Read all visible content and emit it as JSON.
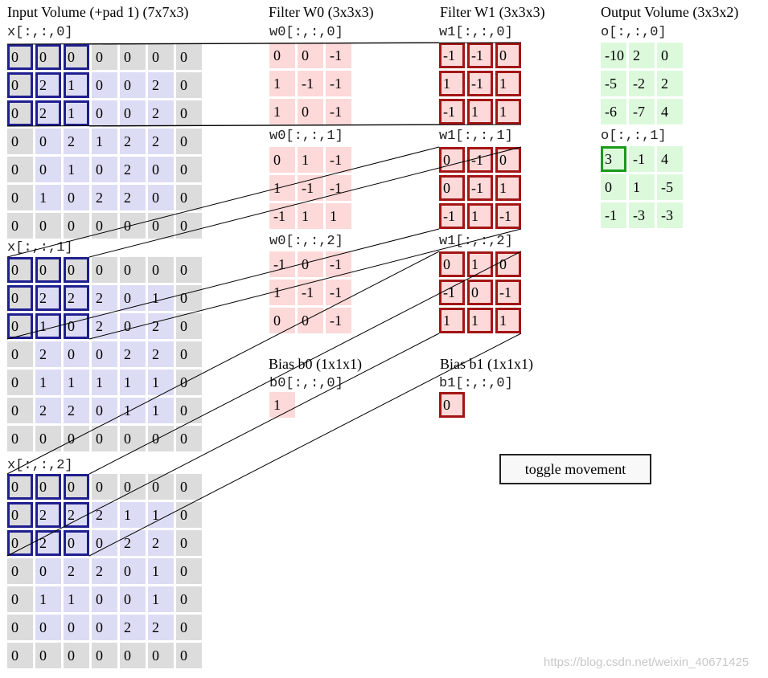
{
  "headers": {
    "input": "Input Volume (+pad 1) (7x7x3)",
    "filter_w0": "Filter W0 (3x3x3)",
    "filter_w1": "Filter W1 (3x3x3)",
    "output": "Output Volume (3x3x2)",
    "bias_b0": "Bias b0 (1x1x1)",
    "bias_b1": "Bias b1 (1x1x1)"
  },
  "input": {
    "slices": [
      {
        "label": "x[:,:,0]",
        "grid": [
          [
            0,
            0,
            0,
            0,
            0,
            0,
            0
          ],
          [
            0,
            2,
            1,
            0,
            0,
            2,
            0
          ],
          [
            0,
            2,
            1,
            0,
            0,
            2,
            0
          ],
          [
            0,
            0,
            2,
            1,
            2,
            2,
            0
          ],
          [
            0,
            0,
            1,
            0,
            2,
            0,
            0
          ],
          [
            0,
            1,
            0,
            2,
            2,
            0,
            0
          ],
          [
            0,
            0,
            0,
            0,
            0,
            0,
            0
          ]
        ]
      },
      {
        "label": "x[:,:,1]",
        "grid": [
          [
            0,
            0,
            0,
            0,
            0,
            0,
            0
          ],
          [
            0,
            2,
            2,
            2,
            0,
            1,
            0
          ],
          [
            0,
            1,
            0,
            2,
            0,
            2,
            0
          ],
          [
            0,
            2,
            0,
            0,
            2,
            2,
            0
          ],
          [
            0,
            1,
            1,
            1,
            1,
            1,
            0
          ],
          [
            0,
            2,
            2,
            0,
            1,
            1,
            0
          ],
          [
            0,
            0,
            0,
            0,
            0,
            0,
            0
          ]
        ]
      },
      {
        "label": "x[:,:,2]",
        "grid": [
          [
            0,
            0,
            0,
            0,
            0,
            0,
            0
          ],
          [
            0,
            2,
            2,
            2,
            1,
            1,
            0
          ],
          [
            0,
            2,
            0,
            0,
            2,
            2,
            0
          ],
          [
            0,
            0,
            2,
            2,
            0,
            1,
            0
          ],
          [
            0,
            1,
            1,
            0,
            0,
            1,
            0
          ],
          [
            0,
            0,
            0,
            0,
            2,
            2,
            0
          ],
          [
            0,
            0,
            0,
            0,
            0,
            0,
            0
          ]
        ]
      }
    ]
  },
  "w0": {
    "slices": [
      {
        "label": "w0[:,:,0]",
        "grid": [
          [
            0,
            0,
            -1
          ],
          [
            1,
            -1,
            -1
          ],
          [
            1,
            0,
            -1
          ]
        ]
      },
      {
        "label": "w0[:,:,1]",
        "grid": [
          [
            0,
            1,
            -1
          ],
          [
            1,
            -1,
            -1
          ],
          [
            -1,
            1,
            1
          ]
        ]
      },
      {
        "label": "w0[:,:,2]",
        "grid": [
          [
            -1,
            0,
            -1
          ],
          [
            1,
            -1,
            -1
          ],
          [
            0,
            0,
            -1
          ]
        ]
      }
    ]
  },
  "w1": {
    "slices": [
      {
        "label": "w1[:,:,0]",
        "grid": [
          [
            -1,
            -1,
            0
          ],
          [
            1,
            -1,
            1
          ],
          [
            -1,
            1,
            1
          ]
        ]
      },
      {
        "label": "w1[:,:,1]",
        "grid": [
          [
            0,
            -1,
            0
          ],
          [
            0,
            -1,
            1
          ],
          [
            -1,
            1,
            -1
          ]
        ]
      },
      {
        "label": "w1[:,:,2]",
        "grid": [
          [
            0,
            1,
            0
          ],
          [
            -1,
            0,
            -1
          ],
          [
            1,
            1,
            1
          ]
        ]
      }
    ]
  },
  "bias": {
    "b0": {
      "label": "b0[:,:,0]",
      "value": 1
    },
    "b1": {
      "label": "b1[:,:,0]",
      "value": 0
    }
  },
  "output": {
    "slices": [
      {
        "label": "o[:,:,0]",
        "grid": [
          [
            -10,
            2,
            0
          ],
          [
            -5,
            -2,
            2
          ],
          [
            -6,
            -7,
            4
          ]
        ]
      },
      {
        "label": "o[:,:,1]",
        "grid": [
          [
            3,
            -1,
            4
          ],
          [
            0,
            1,
            -5
          ],
          [
            -1,
            -3,
            -3
          ]
        ]
      }
    ]
  },
  "highlight": {
    "input_window": {
      "row": 0,
      "col": 0,
      "size": 3
    },
    "filter": "w1",
    "output_slice": 1,
    "output_cell": {
      "row": 0,
      "col": 0
    }
  },
  "controls": {
    "toggle_label": "toggle movement"
  },
  "watermark": "https://blog.csdn.net/weixin_40671425",
  "colors": {
    "pad": "#dcdcdc",
    "input": "#dcdcf5",
    "weight": "#fdd9d9",
    "output": "#dcf9dc",
    "input_highlight": "#1f1f8f",
    "filter_highlight": "#a31515",
    "output_highlight": "#1a9a1a"
  }
}
